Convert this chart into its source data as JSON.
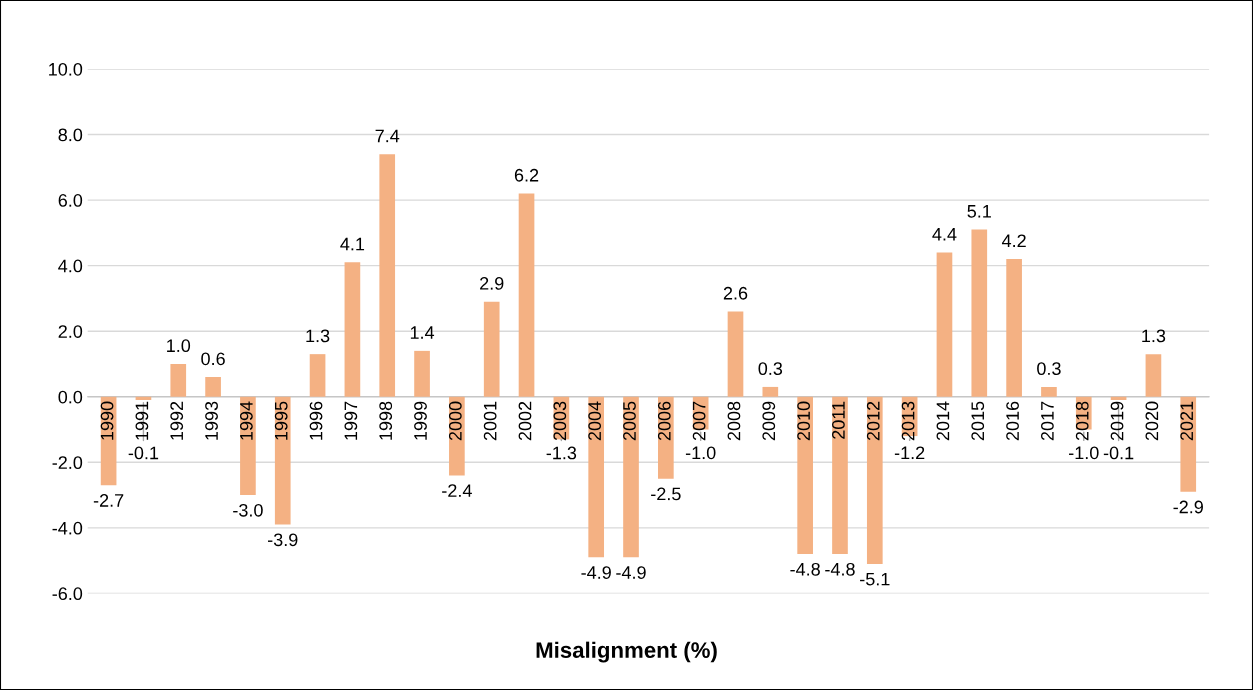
{
  "chart_data": {
    "type": "bar",
    "title": "Misalignment (%)",
    "categories": [
      "1990",
      "1991",
      "1992",
      "1993",
      "1994",
      "1995",
      "1996",
      "1997",
      "1998",
      "1999",
      "2000",
      "2001",
      "2002",
      "2003",
      "2004",
      "2005",
      "2006",
      "2007",
      "2008",
      "2009",
      "2010",
      "2011",
      "2012",
      "2013",
      "2014",
      "2015",
      "2016",
      "2017",
      "2018",
      "2019",
      "2020",
      "2021"
    ],
    "values": [
      -2.7,
      -0.1,
      1.0,
      0.6,
      -3.0,
      -3.9,
      1.3,
      4.1,
      7.4,
      1.4,
      -2.4,
      2.9,
      6.2,
      -1.3,
      -4.9,
      -4.9,
      -2.5,
      -1.0,
      2.6,
      0.3,
      -4.8,
      -4.8,
      -5.1,
      -1.2,
      4.4,
      5.1,
      4.2,
      0.3,
      -1.0,
      -0.1,
      1.3,
      -2.9
    ],
    "color": "#f4b183",
    "ylim": [
      -6,
      10
    ],
    "yticks": [
      {
        "value": -6,
        "label": "-6.0"
      },
      {
        "value": -4,
        "label": "-4.0"
      },
      {
        "value": -2,
        "label": "-2.0"
      },
      {
        "value": 0,
        "label": "0.0"
      },
      {
        "value": 2,
        "label": "2.0"
      },
      {
        "value": 4,
        "label": "4.0"
      },
      {
        "value": 6,
        "label": "6.0"
      },
      {
        "value": 8,
        "label": "8.0"
      },
      {
        "value": 10,
        "label": "10.0"
      }
    ],
    "value_labels": [
      "-2.7",
      "-0.1",
      "1.0",
      "0.6",
      "-3.0",
      "-3.9",
      "1.3",
      "4.1",
      "7.4",
      "1.4",
      "-2.4",
      "2.9",
      "6.2",
      "-1.3",
      "-4.9",
      "-4.9",
      "-2.5",
      "-1.0",
      "2.6",
      "0.3",
      "-4.8",
      "-4.8",
      "-5.1",
      "-1.2",
      "4.4",
      "5.1",
      "4.2",
      "0.3",
      "-1.0",
      "-0.1",
      "1.3",
      "-2.9"
    ],
    "grid": "y"
  }
}
